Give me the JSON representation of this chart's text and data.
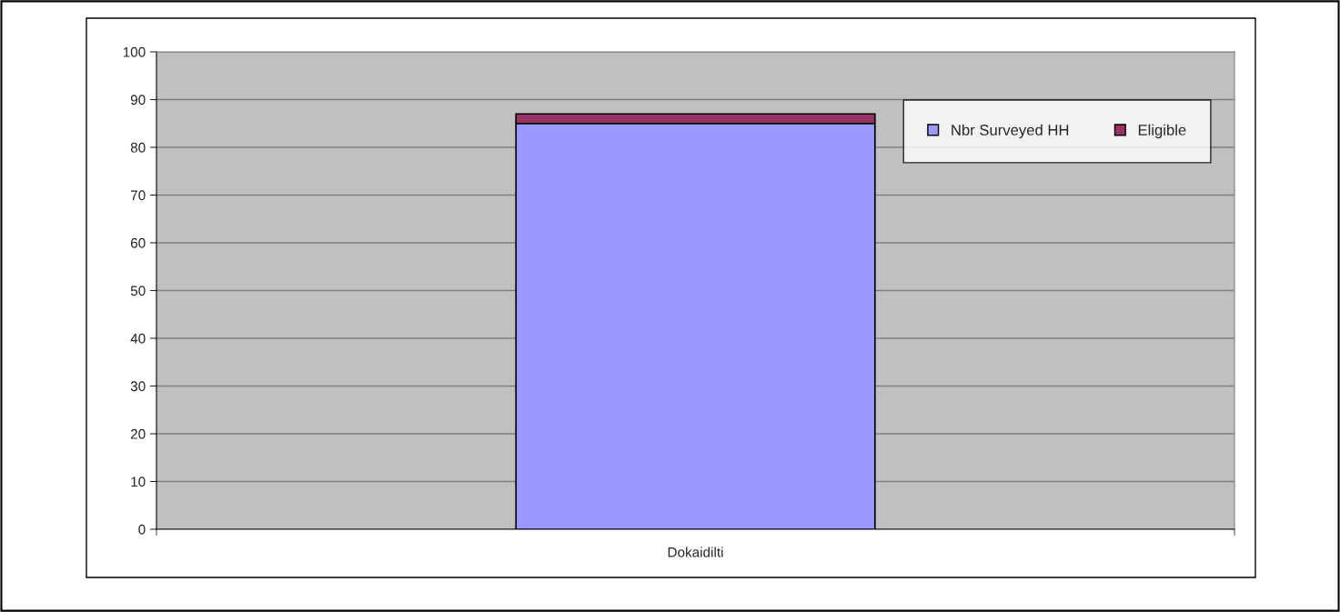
{
  "chart_data": {
    "type": "bar",
    "stacked": true,
    "categories": [
      "Dokaidilti"
    ],
    "series": [
      {
        "name": "Nbr Surveyed HH",
        "color": "#9999ff",
        "values": [
          85
        ]
      },
      {
        "name": "Eligible",
        "color": "#993366",
        "values": [
          2
        ]
      }
    ],
    "ylim": [
      0,
      100
    ],
    "yticks": [
      0,
      10,
      20,
      30,
      40,
      50,
      60,
      70,
      80,
      90,
      100
    ],
    "grid": "y",
    "legend": "top right"
  }
}
